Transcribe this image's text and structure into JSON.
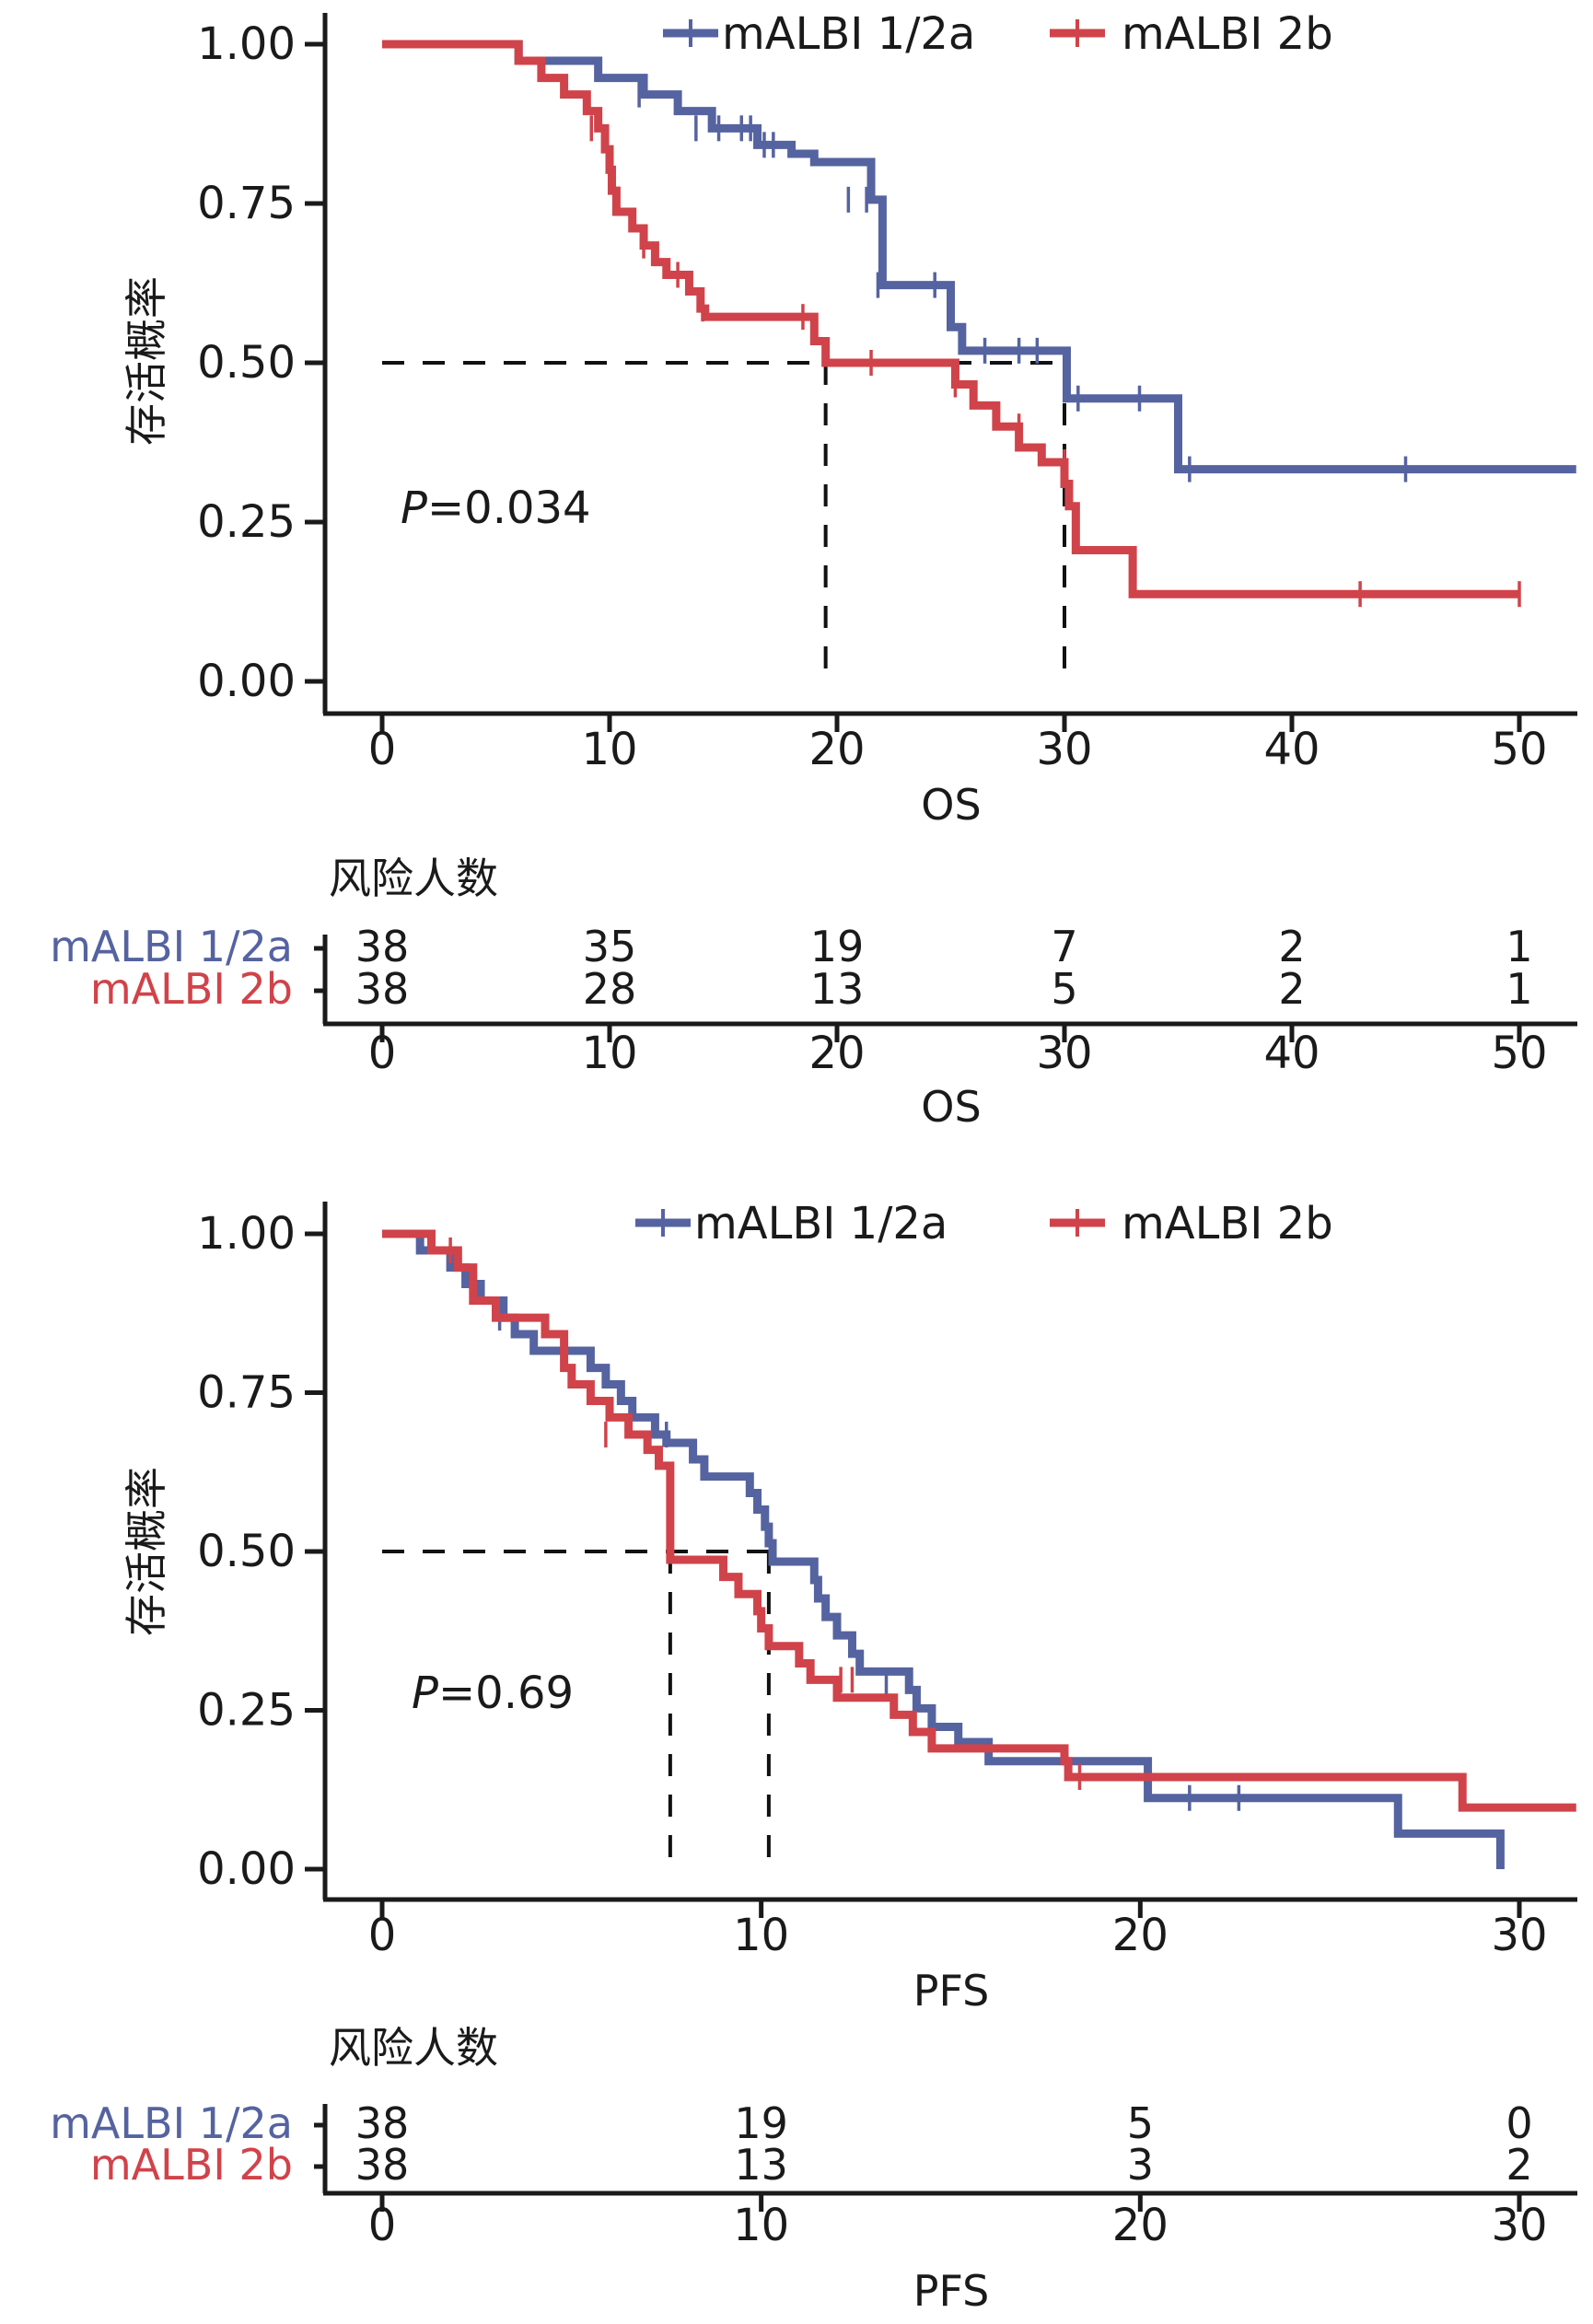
{
  "colors": {
    "group_a": "#5563a0",
    "group_b": "#d0434a",
    "axis": "#1a1a1a"
  },
  "chart_data": [
    {
      "id": "os",
      "type": "line",
      "subtype": "kaplan-meier",
      "xlabel": "OS",
      "ylabel": "存活概率",
      "xlim": [
        -2.5,
        52.5
      ],
      "ylim": [
        -0.05,
        1.05
      ],
      "xticks": [
        0,
        10,
        20,
        30,
        40,
        50
      ],
      "xtick_labels": [
        "0",
        "10",
        "20",
        "30",
        "40",
        "50"
      ],
      "yticks": [
        0,
        0.25,
        0.5,
        0.75,
        1.0
      ],
      "ytick_labels": [
        "0.00",
        "0.25",
        "0.50",
        "0.75",
        "1.00"
      ],
      "annotation": "=0.034",
      "annotation_italic": "P",
      "legend": {
        "position": "top-center",
        "entries": [
          "mALBI 1/2a",
          "mALBI 2b"
        ]
      },
      "median_lines": {
        "y": 0.5,
        "x": [
          19.5,
          30.0
        ]
      },
      "series": [
        {
          "name": "mALBI 1/2a",
          "steps": [
            [
              0,
              1.0
            ],
            [
              6,
              0.974
            ],
            [
              9.5,
              0.947
            ],
            [
              11.5,
              0.921
            ],
            [
              13,
              0.895
            ],
            [
              14.5,
              0.868
            ],
            [
              16.5,
              0.842
            ],
            [
              18,
              0.828
            ],
            [
              19,
              0.815
            ],
            [
              21.5,
              0.756
            ],
            [
              22,
              0.622
            ],
            [
              24.5,
              0.622
            ],
            [
              25,
              0.556
            ],
            [
              25.5,
              0.519
            ],
            [
              30,
              0.519
            ],
            [
              30.1,
              0.444
            ],
            [
              34.5,
              0.444
            ],
            [
              35,
              0.333
            ],
            [
              52.5,
              0.333
            ]
          ],
          "censored": [
            [
              11.3,
              0.921
            ],
            [
              13.8,
              0.868
            ],
            [
              14.8,
              0.868
            ],
            [
              15.8,
              0.868
            ],
            [
              16.2,
              0.868
            ],
            [
              16.8,
              0.842
            ],
            [
              17.2,
              0.842
            ],
            [
              20.5,
              0.756
            ],
            [
              21.3,
              0.756
            ],
            [
              21.8,
              0.622
            ],
            [
              24.3,
              0.622
            ],
            [
              26.5,
              0.519
            ],
            [
              28,
              0.519
            ],
            [
              28.8,
              0.519
            ],
            [
              30.6,
              0.444
            ],
            [
              33.3,
              0.444
            ],
            [
              35.5,
              0.333
            ],
            [
              45,
              0.333
            ]
          ]
        },
        {
          "name": "mALBI 2b",
          "steps": [
            [
              0,
              1.0
            ],
            [
              6,
              0.974
            ],
            [
              7,
              0.947
            ],
            [
              8,
              0.921
            ],
            [
              9,
              0.895
            ],
            [
              9.5,
              0.868
            ],
            [
              9.8,
              0.835
            ],
            [
              10,
              0.803
            ],
            [
              10.1,
              0.77
            ],
            [
              10.3,
              0.737
            ],
            [
              11,
              0.711
            ],
            [
              11.5,
              0.684
            ],
            [
              12,
              0.658
            ],
            [
              12.5,
              0.638
            ],
            [
              13.5,
              0.612
            ],
            [
              14,
              0.585
            ],
            [
              14.2,
              0.572
            ],
            [
              18.5,
              0.572
            ],
            [
              19,
              0.534
            ],
            [
              19.5,
              0.5
            ],
            [
              25,
              0.5
            ],
            [
              25.2,
              0.466
            ],
            [
              26,
              0.433
            ],
            [
              27,
              0.4
            ],
            [
              28,
              0.367
            ],
            [
              29,
              0.344
            ],
            [
              30,
              0.31
            ],
            [
              30.2,
              0.275
            ],
            [
              30.5,
              0.206
            ],
            [
              33,
              0.137
            ],
            [
              50,
              0.137
            ]
          ],
          "censored": [
            [
              9.2,
              0.868
            ],
            [
              10,
              0.803
            ],
            [
              10.2,
              0.77
            ],
            [
              11.5,
              0.684
            ],
            [
              13,
              0.638
            ],
            [
              14.1,
              0.585
            ],
            [
              18.5,
              0.572
            ],
            [
              21.5,
              0.5
            ],
            [
              25.2,
              0.466
            ],
            [
              28,
              0.4
            ],
            [
              30,
              0.344
            ],
            [
              43,
              0.137
            ],
            [
              50,
              0.137
            ]
          ]
        }
      ],
      "risk_table": {
        "title": "风险人数",
        "xlabel": "OS",
        "times": [
          0,
          10,
          20,
          30,
          40,
          50
        ],
        "rows": [
          {
            "group": "mALBI 1/2a",
            "counts": [
              "38",
              "35",
              "19",
              "7",
              "2",
              "1"
            ]
          },
          {
            "group": "mALBI 2b",
            "counts": [
              "38",
              "28",
              "13",
              "5",
              "2",
              "1"
            ]
          }
        ]
      }
    },
    {
      "id": "pfs",
      "type": "line",
      "subtype": "kaplan-meier",
      "xlabel": "PFS",
      "ylabel": "存活概率",
      "xlim": [
        -1.5,
        31.5
      ],
      "ylim": [
        -0.05,
        1.05
      ],
      "xticks": [
        0,
        10,
        20,
        30
      ],
      "xtick_labels": [
        "0",
        "10",
        "20",
        "30"
      ],
      "yticks": [
        0,
        0.25,
        0.5,
        0.75,
        1.0
      ],
      "ytick_labels": [
        "0.00",
        "0.25",
        "0.50",
        "0.75",
        "1.00"
      ],
      "annotation": "=0.69",
      "annotation_italic": "P",
      "legend": {
        "position": "top-center",
        "entries": [
          "mALBI 1/2a",
          "mALBI 2b"
        ]
      },
      "median_lines": {
        "y": 0.5,
        "x": [
          7.6,
          10.2
        ]
      },
      "series": [
        {
          "name": "mALBI 1/2a",
          "steps": [
            [
              0,
              1.0
            ],
            [
              1.0,
              0.974
            ],
            [
              1.8,
              0.947
            ],
            [
              2.2,
              0.921
            ],
            [
              2.6,
              0.895
            ],
            [
              3.2,
              0.868
            ],
            [
              3.5,
              0.842
            ],
            [
              4,
              0.816
            ],
            [
              5.5,
              0.789
            ],
            [
              5.9,
              0.763
            ],
            [
              6.3,
              0.737
            ],
            [
              6.6,
              0.711
            ],
            [
              7.2,
              0.684
            ],
            [
              7.5,
              0.671
            ],
            [
              8.2,
              0.645
            ],
            [
              8.5,
              0.618
            ],
            [
              9.7,
              0.592
            ],
            [
              9.9,
              0.566
            ],
            [
              10.1,
              0.539
            ],
            [
              10.2,
              0.513
            ],
            [
              10.3,
              0.484
            ],
            [
              11.4,
              0.455
            ],
            [
              11.5,
              0.426
            ],
            [
              11.7,
              0.397
            ],
            [
              12,
              0.368
            ],
            [
              12.4,
              0.339
            ],
            [
              12.6,
              0.311
            ],
            [
              13.9,
              0.282
            ],
            [
              14.1,
              0.253
            ],
            [
              14.5,
              0.224
            ],
            [
              15.2,
              0.2
            ],
            [
              16,
              0.17
            ],
            [
              20,
              0.17
            ],
            [
              20.2,
              0.112
            ],
            [
              26.5,
              0.112
            ],
            [
              26.8,
              0.056
            ],
            [
              29.5,
              0.056
            ],
            [
              29.5,
              0.0
            ]
          ],
          "censored": [
            [
              3.1,
              0.868
            ],
            [
              7.5,
              0.684
            ],
            [
              13.3,
              0.286
            ],
            [
              21.3,
              0.112
            ],
            [
              22.6,
              0.112
            ]
          ]
        },
        {
          "name": "mALBI 2b",
          "steps": [
            [
              0,
              1.0
            ],
            [
              1.3,
              0.974
            ],
            [
              2.0,
              0.947
            ],
            [
              2.4,
              0.895
            ],
            [
              3,
              0.868
            ],
            [
              4.3,
              0.842
            ],
            [
              4.8,
              0.789
            ],
            [
              5,
              0.763
            ],
            [
              5.5,
              0.737
            ],
            [
              6,
              0.711
            ],
            [
              6.5,
              0.684
            ],
            [
              7,
              0.66
            ],
            [
              7.3,
              0.635
            ],
            [
              7.6,
              0.5
            ],
            [
              7.6,
              0.487
            ],
            [
              9,
              0.46
            ],
            [
              9.4,
              0.433
            ],
            [
              9.9,
              0.406
            ],
            [
              10,
              0.379
            ],
            [
              10.2,
              0.351
            ],
            [
              11,
              0.324
            ],
            [
              11.3,
              0.298
            ],
            [
              12,
              0.27
            ],
            [
              13.5,
              0.243
            ],
            [
              14,
              0.216
            ],
            [
              14.5,
              0.19
            ],
            [
              18,
              0.17
            ],
            [
              18.1,
              0.145
            ],
            [
              28.5,
              0.145
            ],
            [
              28.5,
              0.097
            ],
            [
              31.5,
              0.097
            ]
          ],
          "censored": [
            [
              1.8,
              0.974
            ],
            [
              5.9,
              0.684
            ],
            [
              12.1,
              0.298
            ],
            [
              12.4,
              0.298
            ],
            [
              18.4,
              0.145
            ]
          ]
        }
      ],
      "risk_table": {
        "title": "风险人数",
        "xlabel": "PFS",
        "times": [
          0,
          10,
          20,
          30
        ],
        "rows": [
          {
            "group": "mALBI 1/2a",
            "counts": [
              "38",
              "19",
              "5",
              "0"
            ]
          },
          {
            "group": "mALBI 2b",
            "counts": [
              "38",
              "13",
              "3",
              "2"
            ]
          }
        ]
      }
    }
  ]
}
